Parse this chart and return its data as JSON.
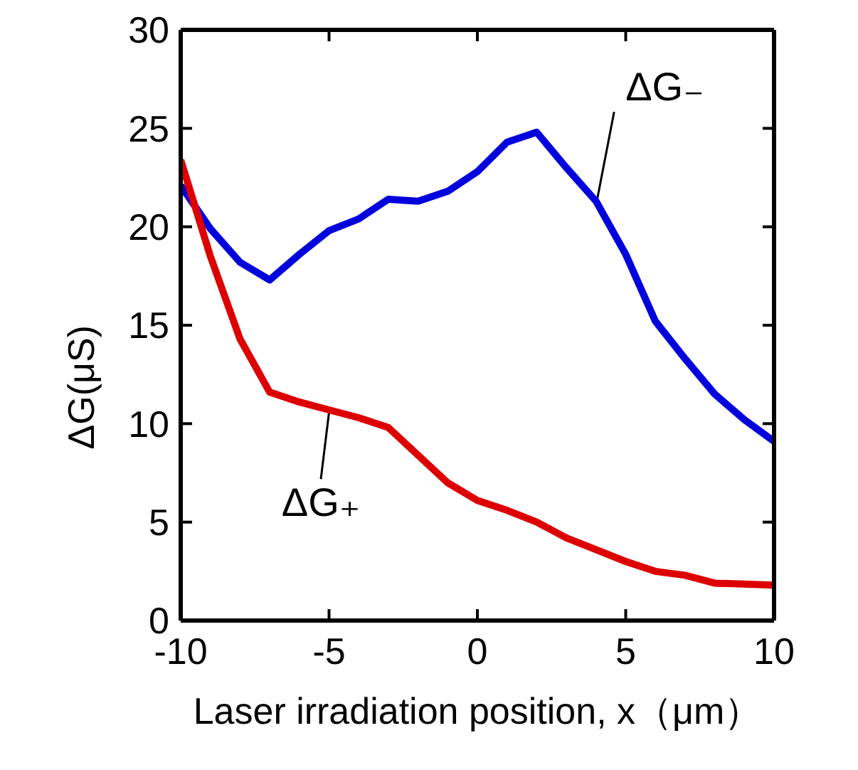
{
  "chart_data": {
    "type": "line",
    "xlabel": "Laser irradiation position, x（μm）",
    "ylabel": "ΔG(μS)",
    "x": [
      -10,
      -9,
      -8,
      -7,
      -6,
      -5,
      -4,
      -3,
      -2,
      -1,
      0,
      1,
      2,
      3,
      4,
      5,
      6,
      7,
      8,
      9,
      10
    ],
    "series": [
      {
        "name": "ΔG₋",
        "color": "#0000dd",
        "values": [
          22.1,
          19.9,
          18.2,
          17.3,
          18.6,
          19.8,
          20.4,
          21.4,
          21.3,
          21.8,
          22.8,
          24.3,
          24.8,
          23.0,
          21.3,
          18.6,
          15.2,
          13.3,
          11.5,
          10.2,
          9.1
        ]
      },
      {
        "name": "ΔG₊",
        "color": "#dd0000",
        "values": [
          23.4,
          18.5,
          14.3,
          11.6,
          11.1,
          10.7,
          10.3,
          9.8,
          8.4,
          7.0,
          6.1,
          5.6,
          5.0,
          4.2,
          3.6,
          3.0,
          2.5,
          2.3,
          1.9,
          1.85,
          1.8
        ]
      }
    ],
    "xlim": [
      -10,
      10
    ],
    "xticks": [
      -10,
      -5,
      0,
      5,
      10
    ],
    "ylim": [
      0,
      30
    ],
    "yticks": [
      0,
      5,
      10,
      15,
      20,
      25,
      30
    ],
    "marker": "none",
    "line_style": "solid"
  }
}
